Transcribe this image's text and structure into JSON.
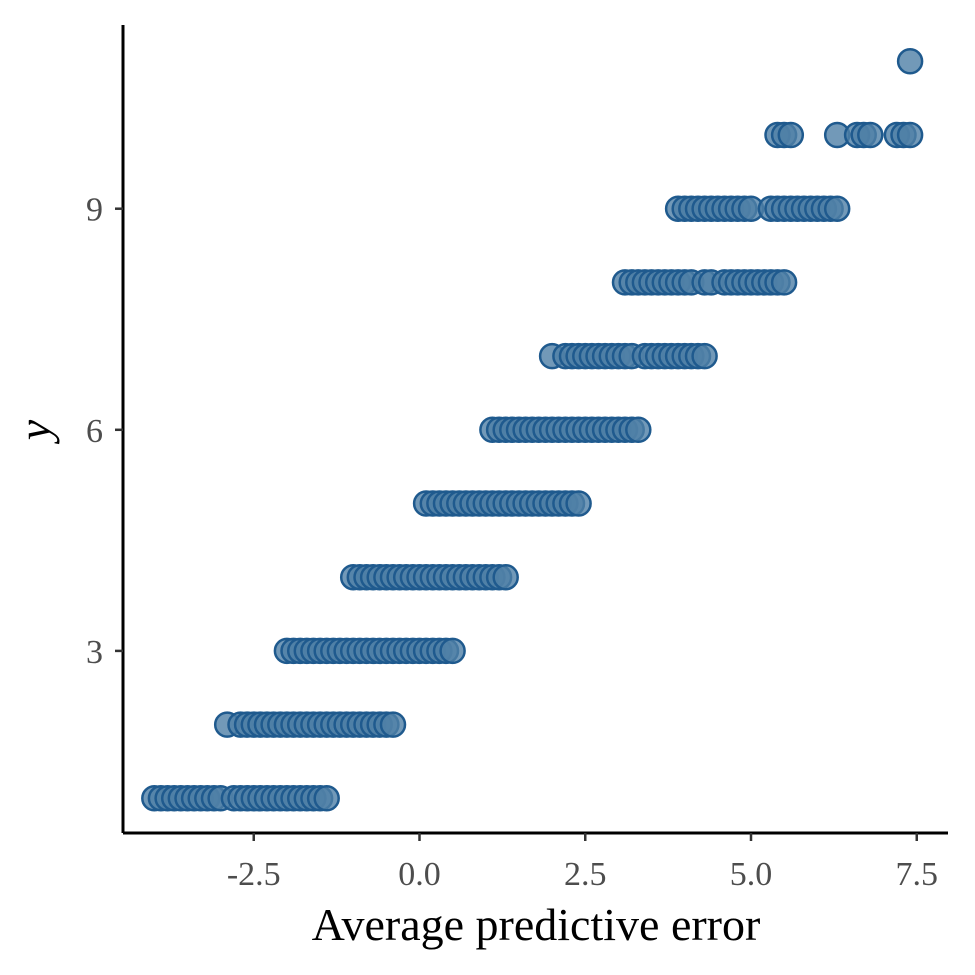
{
  "chart_data": {
    "type": "scatter",
    "title": "",
    "xlabel": "Average predictive error",
    "ylabel": "y",
    "xlim": [
      -4.3,
      8.0
    ],
    "ylim": [
      0.5,
      11.5
    ],
    "x_ticks": [
      -2.5,
      0.0,
      2.5,
      5.0,
      7.5
    ],
    "x_tick_labels": [
      "-2.5",
      "0.0",
      "2.5",
      "5.0",
      "7.5"
    ],
    "y_ticks": [
      3,
      6,
      9
    ],
    "y_tick_labels": [
      "3",
      "6",
      "9"
    ],
    "grid": false,
    "legend": "none",
    "point_fill": "#4f7fa6",
    "point_stroke": "#1f5a8e",
    "point_opacity": 0.8,
    "series": [
      {
        "points": [
          {
            "x": -4.0,
            "y": 1
          },
          {
            "x": -3.9,
            "y": 1
          },
          {
            "x": -3.8,
            "y": 1
          },
          {
            "x": -3.7,
            "y": 1
          },
          {
            "x": -3.6,
            "y": 1
          },
          {
            "x": -3.5,
            "y": 1
          },
          {
            "x": -3.4,
            "y": 1
          },
          {
            "x": -3.3,
            "y": 1
          },
          {
            "x": -3.2,
            "y": 1
          },
          {
            "x": -3.1,
            "y": 1
          },
          {
            "x": -3.0,
            "y": 1
          },
          {
            "x": -2.8,
            "y": 1
          },
          {
            "x": -2.7,
            "y": 1
          },
          {
            "x": -2.6,
            "y": 1
          },
          {
            "x": -2.5,
            "y": 1
          },
          {
            "x": -2.4,
            "y": 1
          },
          {
            "x": -2.3,
            "y": 1
          },
          {
            "x": -2.2,
            "y": 1
          },
          {
            "x": -2.1,
            "y": 1
          },
          {
            "x": -2.0,
            "y": 1
          },
          {
            "x": -1.9,
            "y": 1
          },
          {
            "x": -1.8,
            "y": 1
          },
          {
            "x": -1.7,
            "y": 1
          },
          {
            "x": -1.6,
            "y": 1
          },
          {
            "x": -1.5,
            "y": 1
          },
          {
            "x": -1.4,
            "y": 1
          },
          {
            "x": -2.9,
            "y": 2
          },
          {
            "x": -2.7,
            "y": 2
          },
          {
            "x": -2.6,
            "y": 2
          },
          {
            "x": -2.5,
            "y": 2
          },
          {
            "x": -2.4,
            "y": 2
          },
          {
            "x": -2.3,
            "y": 2
          },
          {
            "x": -2.2,
            "y": 2
          },
          {
            "x": -2.1,
            "y": 2
          },
          {
            "x": -2.0,
            "y": 2
          },
          {
            "x": -1.9,
            "y": 2
          },
          {
            "x": -1.8,
            "y": 2
          },
          {
            "x": -1.7,
            "y": 2
          },
          {
            "x": -1.6,
            "y": 2
          },
          {
            "x": -1.5,
            "y": 2
          },
          {
            "x": -1.4,
            "y": 2
          },
          {
            "x": -1.3,
            "y": 2
          },
          {
            "x": -1.2,
            "y": 2
          },
          {
            "x": -1.1,
            "y": 2
          },
          {
            "x": -1.0,
            "y": 2
          },
          {
            "x": -0.9,
            "y": 2
          },
          {
            "x": -0.8,
            "y": 2
          },
          {
            "x": -0.7,
            "y": 2
          },
          {
            "x": -0.6,
            "y": 2
          },
          {
            "x": -0.5,
            "y": 2
          },
          {
            "x": -0.4,
            "y": 2
          },
          {
            "x": -2.0,
            "y": 3
          },
          {
            "x": -1.9,
            "y": 3
          },
          {
            "x": -1.8,
            "y": 3
          },
          {
            "x": -1.7,
            "y": 3
          },
          {
            "x": -1.6,
            "y": 3
          },
          {
            "x": -1.5,
            "y": 3
          },
          {
            "x": -1.4,
            "y": 3
          },
          {
            "x": -1.3,
            "y": 3
          },
          {
            "x": -1.2,
            "y": 3
          },
          {
            "x": -1.1,
            "y": 3
          },
          {
            "x": -1.0,
            "y": 3
          },
          {
            "x": -0.9,
            "y": 3
          },
          {
            "x": -0.8,
            "y": 3
          },
          {
            "x": -0.7,
            "y": 3
          },
          {
            "x": -0.6,
            "y": 3
          },
          {
            "x": -0.5,
            "y": 3
          },
          {
            "x": -0.4,
            "y": 3
          },
          {
            "x": -0.3,
            "y": 3
          },
          {
            "x": -0.2,
            "y": 3
          },
          {
            "x": -0.1,
            "y": 3
          },
          {
            "x": 0.0,
            "y": 3
          },
          {
            "x": 0.1,
            "y": 3
          },
          {
            "x": 0.2,
            "y": 3
          },
          {
            "x": 0.3,
            "y": 3
          },
          {
            "x": 0.4,
            "y": 3
          },
          {
            "x": 0.5,
            "y": 3
          },
          {
            "x": -1.0,
            "y": 4
          },
          {
            "x": -0.9,
            "y": 4
          },
          {
            "x": -0.8,
            "y": 4
          },
          {
            "x": -0.7,
            "y": 4
          },
          {
            "x": -0.6,
            "y": 4
          },
          {
            "x": -0.5,
            "y": 4
          },
          {
            "x": -0.4,
            "y": 4
          },
          {
            "x": -0.3,
            "y": 4
          },
          {
            "x": -0.2,
            "y": 4
          },
          {
            "x": -0.1,
            "y": 4
          },
          {
            "x": 0.0,
            "y": 4
          },
          {
            "x": 0.1,
            "y": 4
          },
          {
            "x": 0.2,
            "y": 4
          },
          {
            "x": 0.3,
            "y": 4
          },
          {
            "x": 0.4,
            "y": 4
          },
          {
            "x": 0.5,
            "y": 4
          },
          {
            "x": 0.6,
            "y": 4
          },
          {
            "x": 0.7,
            "y": 4
          },
          {
            "x": 0.8,
            "y": 4
          },
          {
            "x": 0.9,
            "y": 4
          },
          {
            "x": 1.0,
            "y": 4
          },
          {
            "x": 1.1,
            "y": 4
          },
          {
            "x": 1.2,
            "y": 4
          },
          {
            "x": 1.3,
            "y": 4
          },
          {
            "x": 0.1,
            "y": 5
          },
          {
            "x": 0.2,
            "y": 5
          },
          {
            "x": 0.3,
            "y": 5
          },
          {
            "x": 0.4,
            "y": 5
          },
          {
            "x": 0.5,
            "y": 5
          },
          {
            "x": 0.6,
            "y": 5
          },
          {
            "x": 0.7,
            "y": 5
          },
          {
            "x": 0.8,
            "y": 5
          },
          {
            "x": 0.9,
            "y": 5
          },
          {
            "x": 1.0,
            "y": 5
          },
          {
            "x": 1.1,
            "y": 5
          },
          {
            "x": 1.2,
            "y": 5
          },
          {
            "x": 1.3,
            "y": 5
          },
          {
            "x": 1.4,
            "y": 5
          },
          {
            "x": 1.5,
            "y": 5
          },
          {
            "x": 1.6,
            "y": 5
          },
          {
            "x": 1.7,
            "y": 5
          },
          {
            "x": 1.8,
            "y": 5
          },
          {
            "x": 1.9,
            "y": 5
          },
          {
            "x": 2.0,
            "y": 5
          },
          {
            "x": 2.1,
            "y": 5
          },
          {
            "x": 2.2,
            "y": 5
          },
          {
            "x": 2.3,
            "y": 5
          },
          {
            "x": 2.4,
            "y": 5
          },
          {
            "x": 1.1,
            "y": 6
          },
          {
            "x": 1.2,
            "y": 6
          },
          {
            "x": 1.3,
            "y": 6
          },
          {
            "x": 1.4,
            "y": 6
          },
          {
            "x": 1.5,
            "y": 6
          },
          {
            "x": 1.6,
            "y": 6
          },
          {
            "x": 1.7,
            "y": 6
          },
          {
            "x": 1.8,
            "y": 6
          },
          {
            "x": 1.9,
            "y": 6
          },
          {
            "x": 2.0,
            "y": 6
          },
          {
            "x": 2.1,
            "y": 6
          },
          {
            "x": 2.2,
            "y": 6
          },
          {
            "x": 2.3,
            "y": 6
          },
          {
            "x": 2.4,
            "y": 6
          },
          {
            "x": 2.5,
            "y": 6
          },
          {
            "x": 2.6,
            "y": 6
          },
          {
            "x": 2.7,
            "y": 6
          },
          {
            "x": 2.8,
            "y": 6
          },
          {
            "x": 2.9,
            "y": 6
          },
          {
            "x": 3.0,
            "y": 6
          },
          {
            "x": 3.1,
            "y": 6
          },
          {
            "x": 3.2,
            "y": 6
          },
          {
            "x": 3.3,
            "y": 6
          },
          {
            "x": 2.0,
            "y": 7
          },
          {
            "x": 2.2,
            "y": 7
          },
          {
            "x": 2.3,
            "y": 7
          },
          {
            "x": 2.4,
            "y": 7
          },
          {
            "x": 2.5,
            "y": 7
          },
          {
            "x": 2.6,
            "y": 7
          },
          {
            "x": 2.7,
            "y": 7
          },
          {
            "x": 2.8,
            "y": 7
          },
          {
            "x": 2.9,
            "y": 7
          },
          {
            "x": 3.0,
            "y": 7
          },
          {
            "x": 3.1,
            "y": 7
          },
          {
            "x": 3.2,
            "y": 7
          },
          {
            "x": 3.4,
            "y": 7
          },
          {
            "x": 3.5,
            "y": 7
          },
          {
            "x": 3.6,
            "y": 7
          },
          {
            "x": 3.7,
            "y": 7
          },
          {
            "x": 3.8,
            "y": 7
          },
          {
            "x": 3.9,
            "y": 7
          },
          {
            "x": 4.0,
            "y": 7
          },
          {
            "x": 4.1,
            "y": 7
          },
          {
            "x": 4.2,
            "y": 7
          },
          {
            "x": 4.3,
            "y": 7
          },
          {
            "x": 3.1,
            "y": 8
          },
          {
            "x": 3.2,
            "y": 8
          },
          {
            "x": 3.3,
            "y": 8
          },
          {
            "x": 3.4,
            "y": 8
          },
          {
            "x": 3.5,
            "y": 8
          },
          {
            "x": 3.6,
            "y": 8
          },
          {
            "x": 3.7,
            "y": 8
          },
          {
            "x": 3.8,
            "y": 8
          },
          {
            "x": 3.9,
            "y": 8
          },
          {
            "x": 4.0,
            "y": 8
          },
          {
            "x": 4.1,
            "y": 8
          },
          {
            "x": 4.3,
            "y": 8
          },
          {
            "x": 4.4,
            "y": 8
          },
          {
            "x": 4.6,
            "y": 8
          },
          {
            "x": 4.7,
            "y": 8
          },
          {
            "x": 4.8,
            "y": 8
          },
          {
            "x": 4.9,
            "y": 8
          },
          {
            "x": 5.0,
            "y": 8
          },
          {
            "x": 5.1,
            "y": 8
          },
          {
            "x": 5.2,
            "y": 8
          },
          {
            "x": 5.3,
            "y": 8
          },
          {
            "x": 5.4,
            "y": 8
          },
          {
            "x": 5.5,
            "y": 8
          },
          {
            "x": 3.9,
            "y": 9
          },
          {
            "x": 4.0,
            "y": 9
          },
          {
            "x": 4.1,
            "y": 9
          },
          {
            "x": 4.2,
            "y": 9
          },
          {
            "x": 4.3,
            "y": 9
          },
          {
            "x": 4.4,
            "y": 9
          },
          {
            "x": 4.5,
            "y": 9
          },
          {
            "x": 4.6,
            "y": 9
          },
          {
            "x": 4.7,
            "y": 9
          },
          {
            "x": 4.8,
            "y": 9
          },
          {
            "x": 4.9,
            "y": 9
          },
          {
            "x": 5.0,
            "y": 9
          },
          {
            "x": 5.3,
            "y": 9
          },
          {
            "x": 5.4,
            "y": 9
          },
          {
            "x": 5.5,
            "y": 9
          },
          {
            "x": 5.6,
            "y": 9
          },
          {
            "x": 5.7,
            "y": 9
          },
          {
            "x": 5.8,
            "y": 9
          },
          {
            "x": 5.9,
            "y": 9
          },
          {
            "x": 6.0,
            "y": 9
          },
          {
            "x": 6.1,
            "y": 9
          },
          {
            "x": 6.2,
            "y": 9
          },
          {
            "x": 6.3,
            "y": 9
          },
          {
            "x": 5.4,
            "y": 10
          },
          {
            "x": 5.5,
            "y": 10
          },
          {
            "x": 5.6,
            "y": 10
          },
          {
            "x": 6.3,
            "y": 10
          },
          {
            "x": 6.6,
            "y": 10
          },
          {
            "x": 6.7,
            "y": 10
          },
          {
            "x": 6.8,
            "y": 10
          },
          {
            "x": 7.2,
            "y": 10
          },
          {
            "x": 7.3,
            "y": 10
          },
          {
            "x": 7.4,
            "y": 10
          },
          {
            "x": 7.4,
            "y": 11
          }
        ]
      }
    ]
  }
}
